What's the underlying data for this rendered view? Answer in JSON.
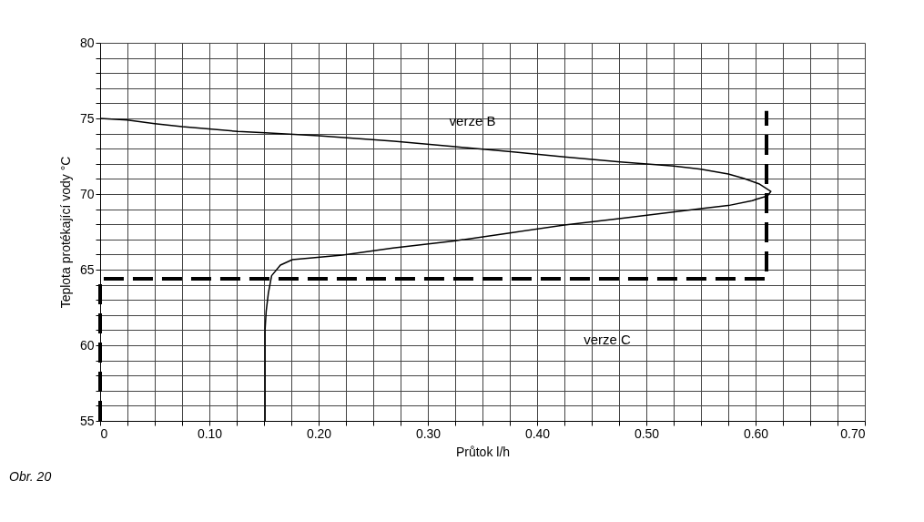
{
  "chart_data": {
    "type": "line",
    "xlabel": "Průtok l/h",
    "ylabel": "Teplota protékající vody °C",
    "xlim": [
      0,
      0.7
    ],
    "ylim": [
      55,
      80
    ],
    "xticks": [
      0,
      {
        "value": 0.025,
        "label": null
      },
      {
        "value": 0.05,
        "label": null
      },
      {
        "value": 0.075,
        "label": null
      },
      {
        "value": 0.1,
        "label": "0.10"
      },
      {
        "value": 0.125,
        "label": null
      },
      {
        "value": 0.15,
        "label": null
      },
      {
        "value": 0.175,
        "label": null
      },
      {
        "value": 0.2,
        "label": "0.20"
      },
      {
        "value": 0.225,
        "label": null
      },
      {
        "value": 0.25,
        "label": null
      },
      {
        "value": 0.275,
        "label": null
      },
      {
        "value": 0.3,
        "label": "0.30"
      },
      {
        "value": 0.325,
        "label": null
      },
      {
        "value": 0.35,
        "label": null
      },
      {
        "value": 0.375,
        "label": null
      },
      {
        "value": 0.4,
        "label": "0.40"
      },
      {
        "value": 0.425,
        "label": null
      },
      {
        "value": 0.45,
        "label": null
      },
      {
        "value": 0.475,
        "label": null
      },
      {
        "value": 0.5,
        "label": "0.50"
      },
      {
        "value": 0.525,
        "label": null
      },
      {
        "value": 0.55,
        "label": null
      },
      {
        "value": 0.575,
        "label": null
      },
      {
        "value": 0.6,
        "label": "0.60"
      },
      {
        "value": 0.625,
        "label": null
      },
      {
        "value": 0.65,
        "label": null
      },
      {
        "value": 0.675,
        "label": null
      },
      {
        "value": 0.7,
        "label": "0.70"
      }
    ],
    "yticks": [
      55,
      {
        "value": 56,
        "label": null
      },
      {
        "value": 57,
        "label": null
      },
      {
        "value": 58,
        "label": null
      },
      {
        "value": 59,
        "label": null
      },
      60,
      {
        "value": 61,
        "label": null
      },
      {
        "value": 62,
        "label": null
      },
      {
        "value": 63,
        "label": null
      },
      {
        "value": 64,
        "label": null
      },
      65,
      {
        "value": 66,
        "label": null
      },
      {
        "value": 67,
        "label": null
      },
      {
        "value": 68,
        "label": null
      },
      {
        "value": 69,
        "label": null
      },
      70,
      {
        "value": 71,
        "label": null
      },
      {
        "value": 72,
        "label": null
      },
      {
        "value": 73,
        "label": null
      },
      {
        "value": 74,
        "label": null
      },
      75,
      {
        "value": 76,
        "label": null
      },
      {
        "value": 77,
        "label": null
      },
      {
        "value": 78,
        "label": null
      },
      {
        "value": 79,
        "label": null
      },
      80
    ],
    "grid": true,
    "series": [
      {
        "color": "#000000",
        "line_style": "solid",
        "x": [
          0,
          0.025,
          0.05,
          0.075,
          0.126,
          0.151,
          0.2,
          0.269,
          0.325,
          0.376,
          0.425,
          0.476,
          0.525,
          0.55,
          0.575,
          0.589,
          0.603,
          0.614,
          0.611,
          0.6,
          0.597,
          0.575,
          0.55,
          0.475,
          0.425,
          0.375,
          0.324,
          0.268,
          0.222,
          0.176,
          0.165,
          0.157,
          0.154,
          0.152,
          0.151,
          0.151
        ],
        "values": [
          75.0,
          74.9,
          74.66,
          74.46,
          74.14,
          74.05,
          73.86,
          73.5,
          73.13,
          72.8,
          72.45,
          72.13,
          71.85,
          71.64,
          71.33,
          71.04,
          70.68,
          70.18,
          69.88,
          69.64,
          69.56,
          69.24,
          69.04,
          68.37,
          67.95,
          67.43,
          66.9,
          66.43,
          65.96,
          65.66,
          65.3,
          64.6,
          63.46,
          62.25,
          61.05,
          55
        ]
      },
      {
        "color": "#000000",
        "line_style": "dashed",
        "x": [
          0,
          0,
          0.61,
          0.61
        ],
        "values": [
          55,
          64.4,
          64.4,
          75.5
        ]
      }
    ],
    "annotations": [
      "verze B",
      "verze C",
      "Obr. 20"
    ]
  }
}
